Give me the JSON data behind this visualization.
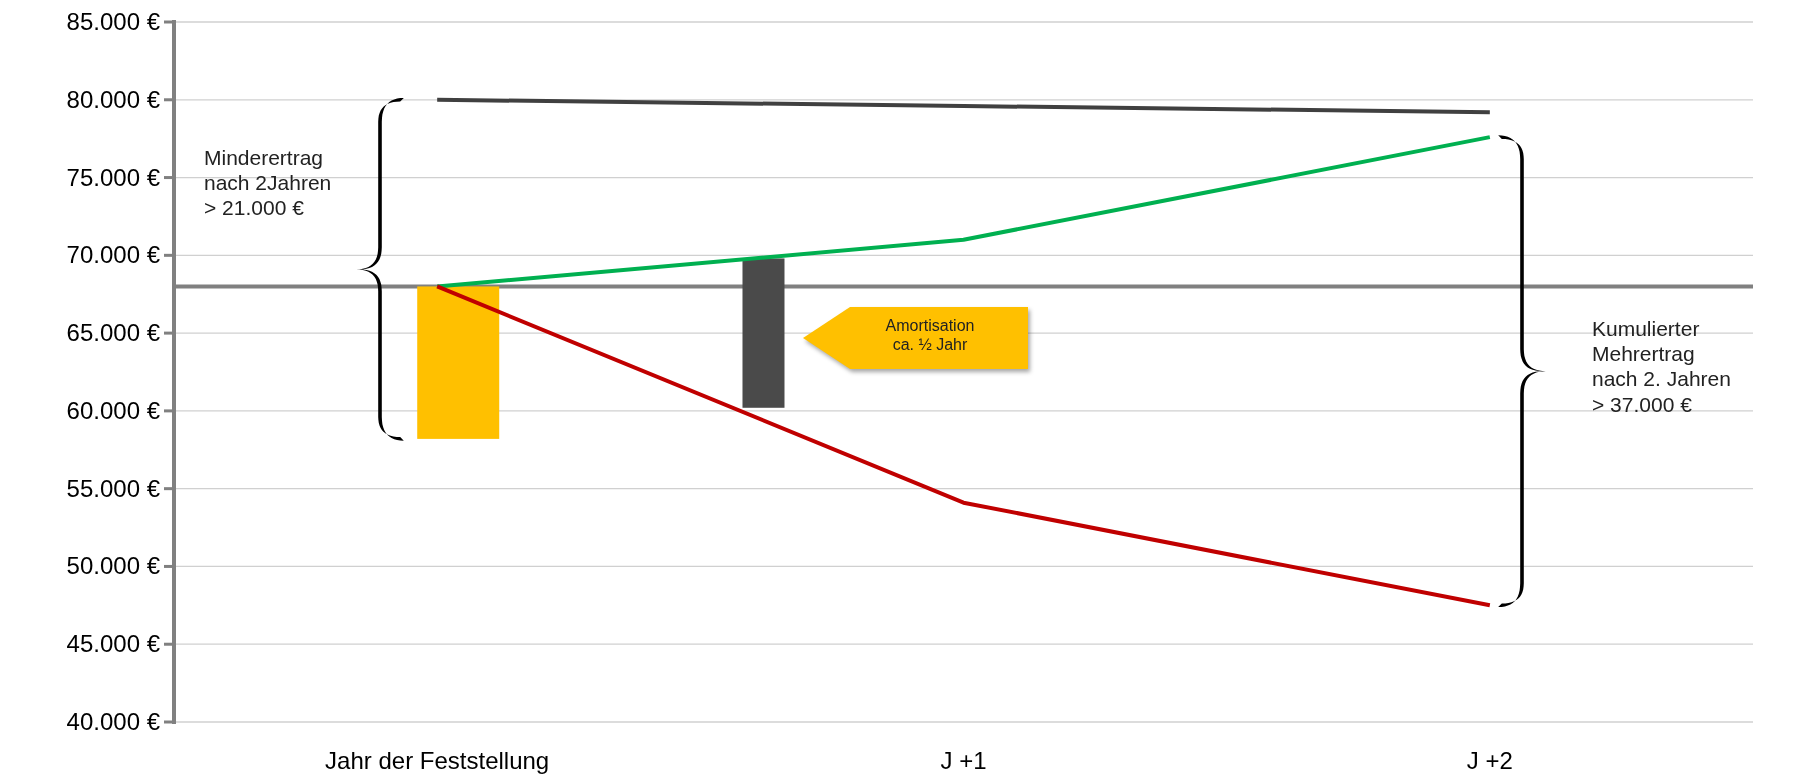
{
  "chart_data": {
    "type": "line",
    "x": [
      0,
      1,
      2
    ],
    "xlim": [
      -0.5,
      2.5
    ],
    "xticks": [
      {
        "value": 0,
        "label": "Jahr der Feststellung"
      },
      {
        "value": 1,
        "label": "J +1"
      },
      {
        "value": 2,
        "label": "J +2"
      }
    ],
    "ylim": [
      40000,
      85000
    ],
    "yticks": [
      {
        "value": 40000,
        "label": "40.000 €"
      },
      {
        "value": 45000,
        "label": "45.000 €"
      },
      {
        "value": 50000,
        "label": "50.000 €"
      },
      {
        "value": 55000,
        "label": "55.000 €"
      },
      {
        "value": 60000,
        "label": "60.000 €"
      },
      {
        "value": 65000,
        "label": "65.000 €"
      },
      {
        "value": 70000,
        "label": "70.000 €"
      },
      {
        "value": 75000,
        "label": "75.000 €"
      },
      {
        "value": 80000,
        "label": "80.000 €"
      },
      {
        "value": 85000,
        "label": "85.000 €"
      }
    ],
    "grid": "y",
    "marker": "none",
    "series": [
      {
        "type": "bar",
        "x": [
          0.04,
          0.62
        ],
        "base": [
          58200,
          60200
        ],
        "values": [
          9800,
          9600
        ],
        "colors": [
          "#ffc000",
          "#4a4a4a"
        ]
      },
      {
        "color": "#404040",
        "values": [
          80000,
          79600,
          79200
        ]
      },
      {
        "color": "#00b050",
        "values": [
          68000,
          71000,
          77600
        ]
      },
      {
        "color": "#c00000",
        "values": [
          68000,
          54100,
          47500
        ]
      }
    ],
    "ref_lines": [
      {
        "axis": "y",
        "value": 68000,
        "color": "#808080"
      }
    ],
    "annotations": [
      "Minderertrag\nnach 2Jahren\n> 21.000 €",
      "Kumulierter\nMehrertrag\nnach 2. Jahren\n> 37.000 €",
      "Amortisation\nca. ½ Jahr"
    ]
  }
}
